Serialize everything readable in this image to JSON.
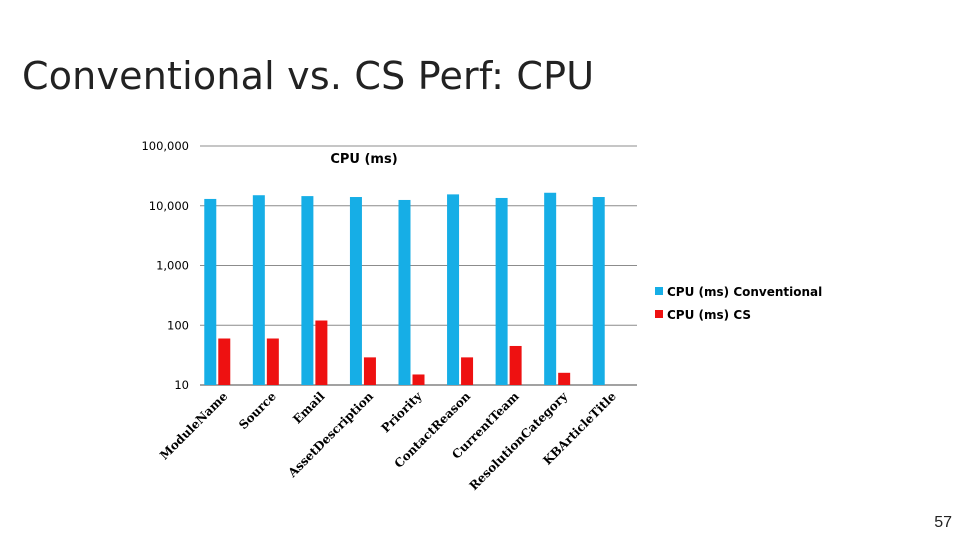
{
  "slide": {
    "title": "Conventional vs. CS Perf: CPU",
    "page_number": "57"
  },
  "chart_data": {
    "type": "bar",
    "title": "CPU (ms)",
    "xlabel": "",
    "ylabel": "",
    "scale": "log",
    "ylim": [
      10,
      100000
    ],
    "y_ticks": [
      "100,000",
      "10,000",
      "1,000",
      "100",
      "10"
    ],
    "grid": "horizontal",
    "legend_position": "right",
    "categories": [
      "ModuleName",
      "Source",
      "Email",
      "AssetDescription",
      "Priority",
      "ContactReason",
      "CurrentTeam",
      "ResolutionCategory",
      "KBArticleTitle"
    ],
    "series": [
      {
        "name": "CPU (ms) Conventional",
        "color": "#16aee6",
        "values": [
          13000,
          15000,
          14500,
          14000,
          12500,
          15500,
          13500,
          16500,
          14000
        ]
      },
      {
        "name": "CPU (ms) CS",
        "color": "#ee1111",
        "values": [
          60,
          60,
          120,
          29,
          15,
          29,
          45,
          16,
          null
        ]
      }
    ]
  }
}
